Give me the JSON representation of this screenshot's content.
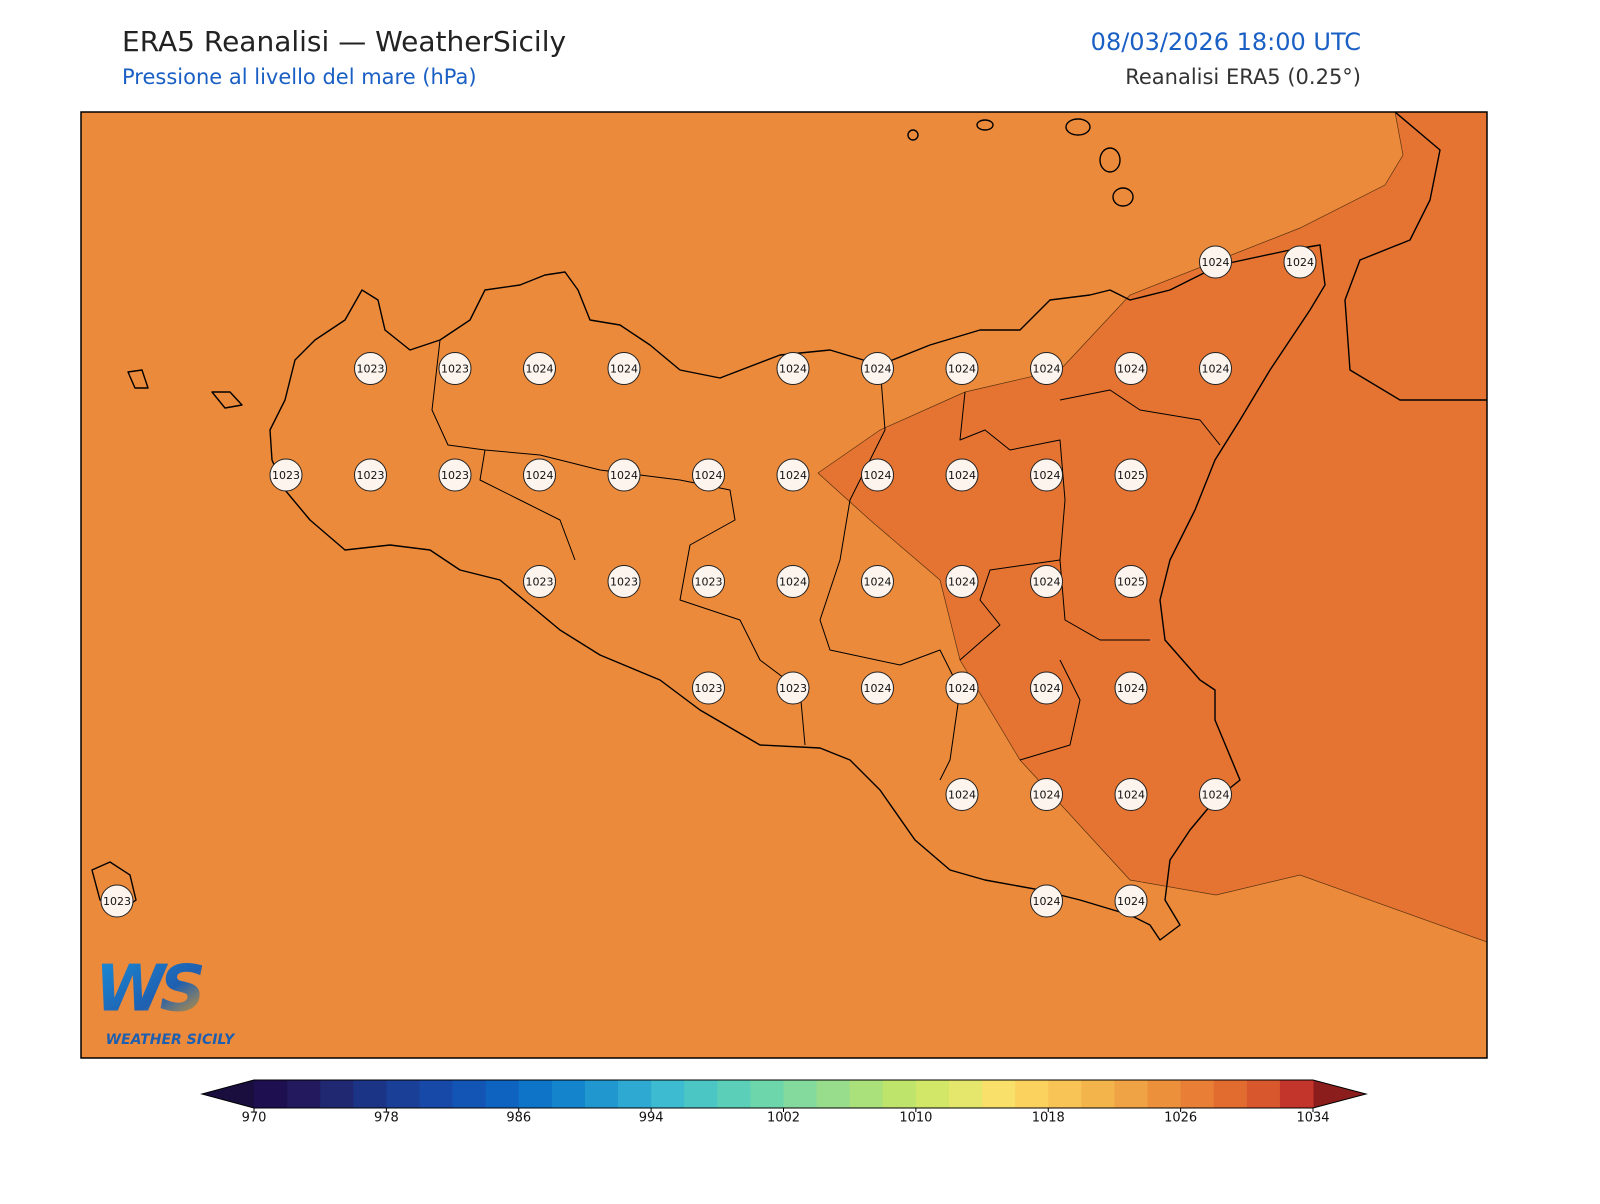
{
  "header": {
    "title": "ERA5 Reanalisi — WeatherSicily",
    "subtitle": "Pressione al livello del mare (hPa)",
    "datetime": "08/03/2026 18:00 UTC",
    "source": "Reanalisi ERA5 (0.25°)"
  },
  "grid_values": [
    [
      null,
      null,
      null,
      null,
      null,
      null,
      null,
      null,
      null,
      null,
      null,
      null,
      null,
      1024,
      1024
    ],
    [
      null,
      null,
      null,
      1023,
      1023,
      1024,
      1024,
      null,
      1024,
      1024,
      1024,
      1024,
      1024,
      1024,
      null
    ],
    [
      null,
      null,
      1023,
      1023,
      1023,
      1024,
      1024,
      1024,
      1024,
      1024,
      1024,
      1024,
      1025,
      null,
      null
    ],
    [
      null,
      null,
      null,
      null,
      null,
      1023,
      1023,
      1023,
      1024,
      1024,
      1024,
      1024,
      1025,
      null,
      null
    ],
    [
      null,
      null,
      null,
      null,
      null,
      null,
      null,
      1023,
      1023,
      1024,
      1024,
      1024,
      1024,
      null,
      null
    ],
    [
      null,
      null,
      null,
      null,
      null,
      null,
      null,
      null,
      null,
      null,
      1024,
      1024,
      1024,
      1024,
      null
    ],
    [
      1023,
      null,
      null,
      null,
      null,
      null,
      null,
      null,
      null,
      null,
      null,
      1024,
      1024,
      null,
      null
    ]
  ],
  "colorbar": {
    "lim": [
      970,
      1034
    ],
    "ticks": [
      970,
      978,
      986,
      994,
      1002,
      1010,
      1018,
      1026,
      1034
    ],
    "colors": [
      "#1e1050",
      "#22195e",
      "#1f2870",
      "#1c3485",
      "#1a3f97",
      "#1749a8",
      "#1355b5",
      "#0f63c0",
      "#0e74c8",
      "#1485cc",
      "#2197cf",
      "#2ea9d2",
      "#3dbbd0",
      "#4bc6c4",
      "#5ccfb8",
      "#6ed6ab",
      "#83da9c",
      "#97dd8b",
      "#abe17a",
      "#bee46c",
      "#d2e668",
      "#e5e76d",
      "#f8e06a",
      "#fbd25e",
      "#f8c455",
      "#f4b44c",
      "#f0a344",
      "#ec903c",
      "#e97e36",
      "#e26c30",
      "#d9572c",
      "#c3352a"
    ],
    "under_color": "#1a0e3f",
    "over_color": "#8b1d1d"
  },
  "logo": {
    "text": "WS",
    "caption": "WEATHER SICILY"
  }
}
